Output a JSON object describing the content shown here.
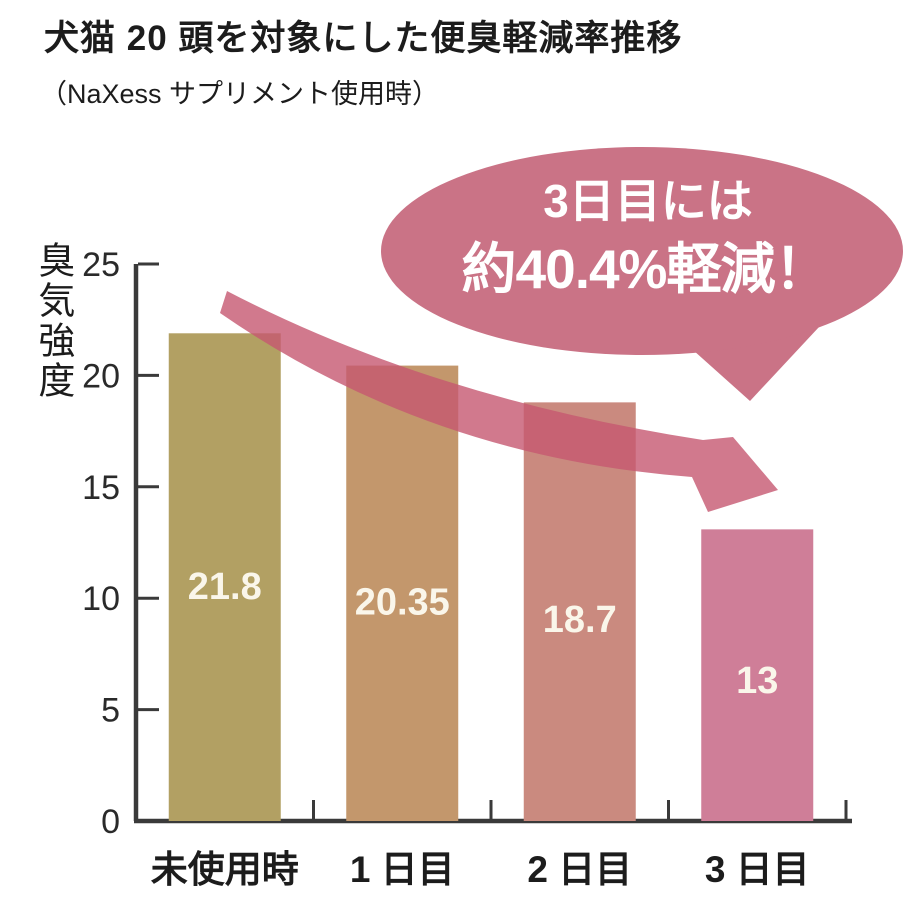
{
  "header": {
    "title": "犬猫 20 頭を対象にした便臭軽減率推移",
    "subtitle": "（NaXess サプリメント使用時）"
  },
  "callout": {
    "line1": "3日目には",
    "line2": "約40.4%軽減！"
  },
  "chart_data": {
    "type": "bar",
    "title": "犬猫 20 頭を対象にした便臭軽減率推移",
    "subtitle": "（NaXess サプリメント使用時）",
    "ylabel": "臭気強度",
    "xlabel": "",
    "ylim": [
      0,
      25
    ],
    "yticks": [
      0,
      5,
      10,
      15,
      20,
      25
    ],
    "grid": false,
    "legend": false,
    "categories": [
      "未使用時",
      "1 日目",
      "2 日目",
      "3 日目"
    ],
    "values": [
      21.8,
      20.35,
      18.7,
      13
    ],
    "value_labels": [
      "21.8",
      "20.35",
      "18.7",
      "13"
    ],
    "annotation": {
      "shape": "speech-bubble",
      "text_line1": "3日目には",
      "text_line2": "約40.4%軽減！",
      "points_to": "3 日目"
    },
    "trend_arrow": "thick translucent pink arrow sloping down from 未使用時 toward 3 日目"
  },
  "colors": {
    "background": "#ffffff",
    "bars": [
      "#b2a063",
      "#c3976c",
      "#ca8a7f",
      "#cf7e98"
    ],
    "bar_value_text": "#faf6ea",
    "bubble": "#ca7386",
    "bubble_text": "#ffffff",
    "arrow": "rgba(197,88,112,0.8)",
    "axis": "#3a3a3a",
    "label_text": "#1c1c1c",
    "tick_text": "#2a2a2a"
  }
}
